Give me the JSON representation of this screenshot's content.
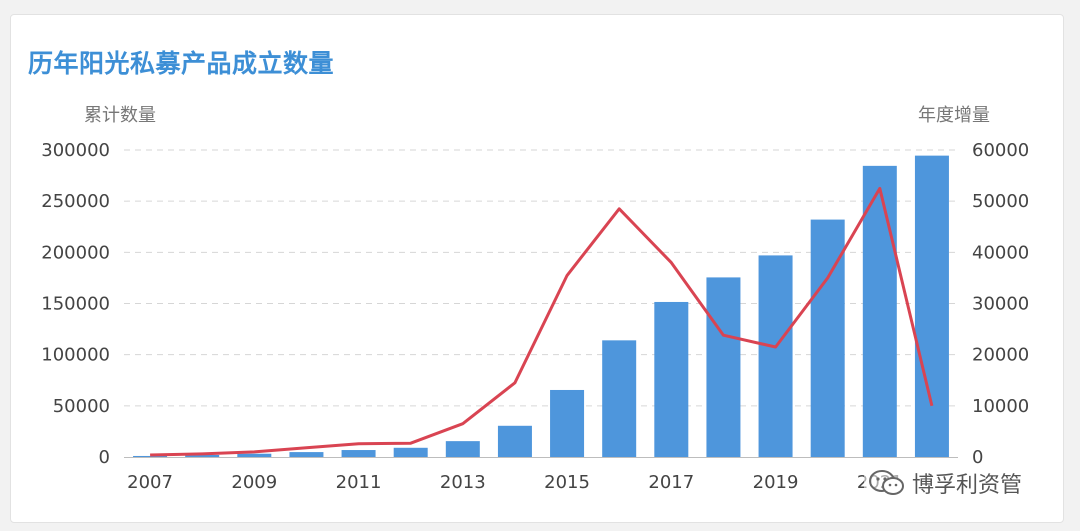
{
  "chart_data": {
    "type": "bar+line",
    "title": "历年阳光私募产品成立数量",
    "ylabel_left": "累计数量",
    "ylabel_right": "年度增量",
    "x": [
      2007,
      2008,
      2009,
      2010,
      2011,
      2012,
      2013,
      2014,
      2015,
      2016,
      2017,
      2018,
      2019,
      2020,
      2021,
      2022
    ],
    "x_tick_labels": [
      "2007",
      "2009",
      "2011",
      "2013",
      "2015",
      "2017",
      "2019",
      "2021"
    ],
    "series": [
      {
        "type": "bar",
        "axis": "left",
        "color": "#4e96dc",
        "values": [
          1000,
          2000,
          3200,
          4800,
          6800,
          9000,
          15500,
          30500,
          65500,
          114000,
          151500,
          175500,
          197000,
          232000,
          284500,
          294500
        ]
      },
      {
        "type": "line",
        "axis": "right",
        "color": "#d94452",
        "values": [
          400,
          600,
          1000,
          1800,
          2600,
          2700,
          6500,
          14500,
          35500,
          48500,
          38000,
          23800,
          21500,
          35000,
          52500,
          10000
        ]
      }
    ],
    "ylim_left": [
      0,
      300000
    ],
    "yticks_left": [
      "0",
      "50000",
      "100000",
      "150000",
      "200000",
      "250000",
      "300000"
    ],
    "ylim_right": [
      0,
      60000
    ],
    "yticks_right": [
      "0",
      "10000",
      "20000",
      "30000",
      "40000",
      "50000",
      "60000"
    ],
    "grid": "horizontal-dashed",
    "legend": "none"
  },
  "watermark": {
    "text": "博孚利资管",
    "icon": "wechat-icon"
  }
}
